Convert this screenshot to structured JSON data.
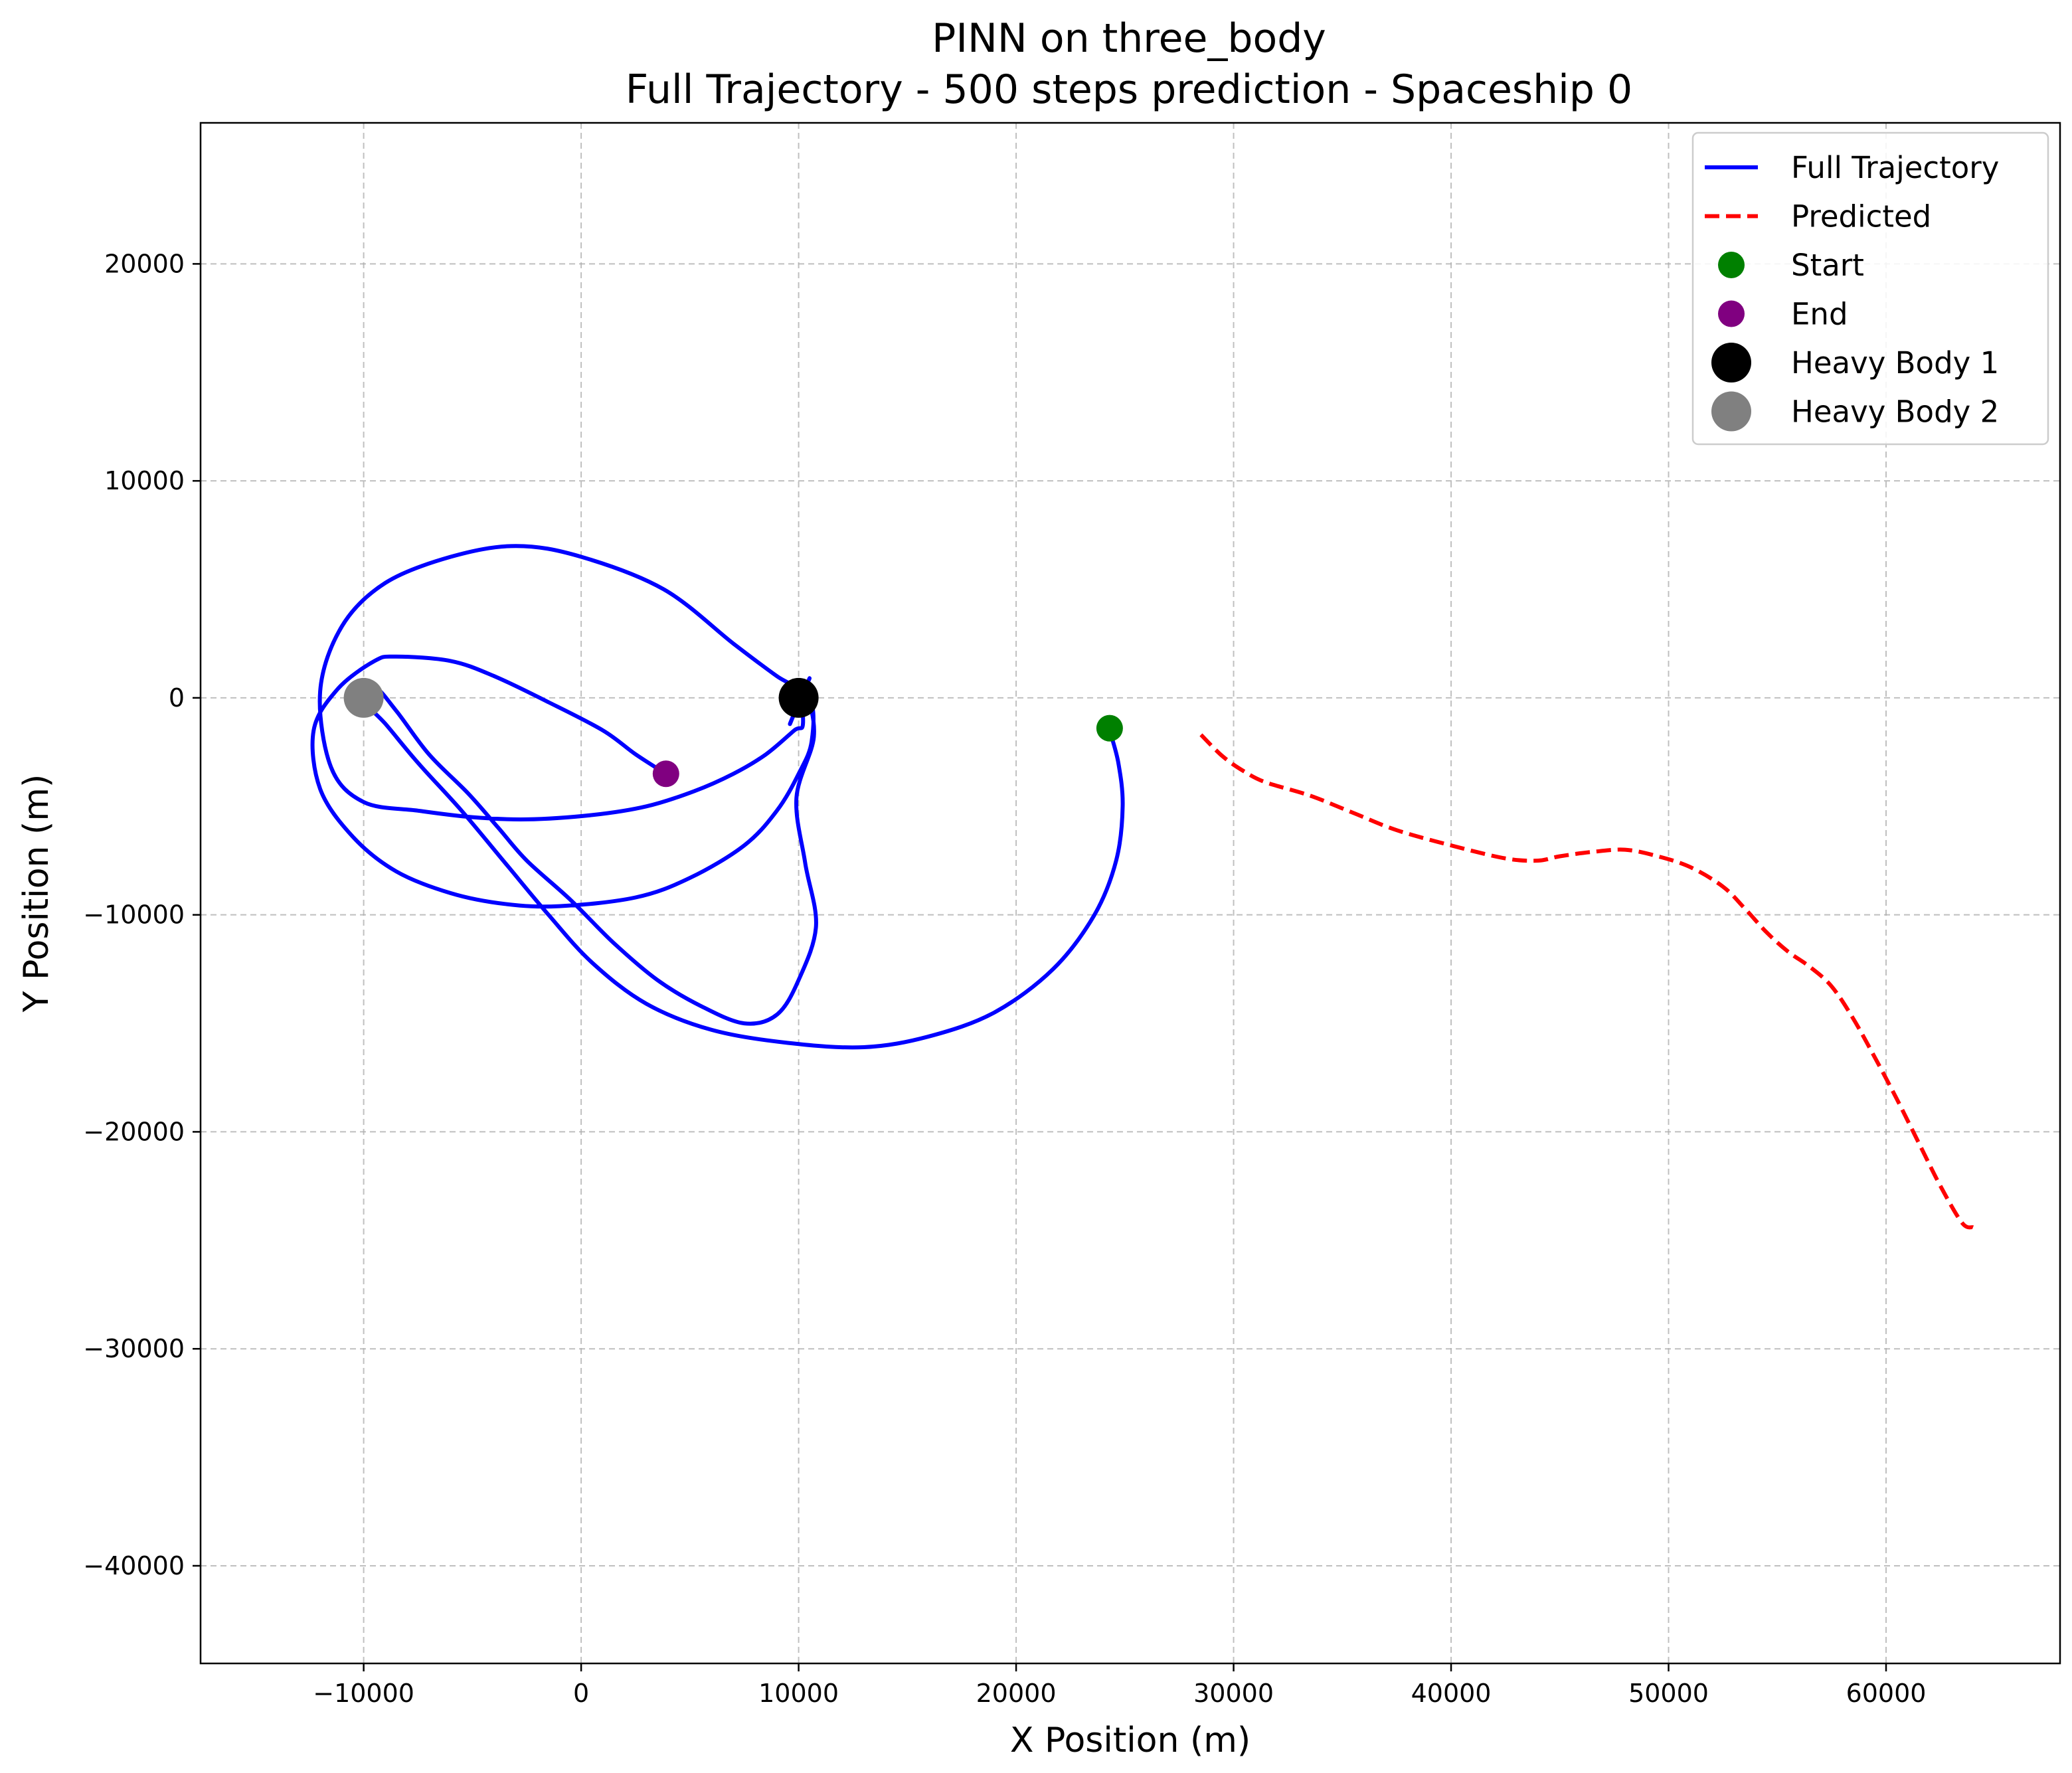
{
  "chart_data": {
    "type": "line",
    "title": "PINN on three_body",
    "subtitle": "Full Trajectory - 500 steps prediction - Spaceship 0",
    "xlabel": "X Position (m)",
    "ylabel": "Y Position (m)",
    "xlim": [
      -17500,
      68000
    ],
    "ylim": [
      -44500,
      26500
    ],
    "xticks": [
      -10000,
      0,
      10000,
      20000,
      30000,
      40000,
      50000,
      60000
    ],
    "xtick_labels": [
      "−10000",
      "0",
      "10000",
      "20000",
      "30000",
      "40000",
      "50000",
      "60000"
    ],
    "yticks": [
      20000,
      10000,
      0,
      -10000,
      -20000,
      -30000,
      -40000
    ],
    "ytick_labels": [
      "20000",
      "10000",
      "0",
      "−10000",
      "−20000",
      "−30000",
      "−40000"
    ],
    "grid": true,
    "legend_position": "top-right",
    "series": [
      {
        "name": "Full Trajectory",
        "kind": "line",
        "color": "#0000ff",
        "style": "solid",
        "x": [
          24300,
          24700,
          24900,
          24600,
          23600,
          21700,
          19000,
          16000,
          13000,
          9500,
          6000,
          3000,
          500,
          -1500,
          -3500,
          -5500,
          -7500,
          -9000,
          -10000,
          -9500,
          -8500,
          -7000,
          -5200,
          -3800,
          -2500,
          -500,
          1500,
          3500,
          5500,
          7500,
          9000,
          10000,
          10800,
          10300,
          9900,
          10700,
          10300,
          9600,
          10500,
          9800,
          10000,
          10200,
          9800,
          8500,
          7000,
          5200,
          3000,
          500,
          -2500,
          -5000,
          -7500,
          -10000,
          -11500,
          -12000,
          -11000,
          -9000,
          -6000,
          -3000,
          0,
          3800,
          7000,
          9000,
          10500,
          10600,
          10000,
          9000,
          7500,
          5000,
          2500,
          -1000,
          -3500,
          -6000,
          -8500,
          -10500,
          -12000,
          -12300,
          -11200,
          -9500,
          -8500,
          -6000,
          -4000,
          -1500,
          1000,
          2500,
          3900
        ],
        "y": [
          -1500,
          -3000,
          -5000,
          -7500,
          -10000,
          -12500,
          -14500,
          -15600,
          -16100,
          -15900,
          -15300,
          -14100,
          -12200,
          -10000,
          -7600,
          -5200,
          -3000,
          -1200,
          -100,
          500,
          -600,
          -2600,
          -4400,
          -6000,
          -7500,
          -9300,
          -11300,
          -13000,
          -14200,
          -15000,
          -14600,
          -13000,
          -10500,
          -7600,
          -4600,
          -1800,
          100,
          -1200,
          900,
          -600,
          700,
          -1200,
          -1500,
          -2600,
          -3500,
          -4300,
          -5000,
          -5400,
          -5600,
          -5500,
          -5200,
          -4800,
          -3200,
          300,
          3300,
          5300,
          6500,
          7000,
          6500,
          5000,
          2500,
          1000,
          0,
          -2000,
          -3500,
          -5200,
          -6800,
          -8300,
          -9200,
          -9600,
          -9500,
          -9000,
          -8000,
          -6400,
          -4200,
          -1500,
          400,
          1700,
          1900,
          1700,
          1000,
          -200,
          -1500,
          -2600,
          -3500
        ]
      },
      {
        "name": "Predicted",
        "kind": "line",
        "color": "#ff0000",
        "style": "dashed",
        "x": [
          28500,
          29500,
          30500,
          31500,
          33500,
          35500,
          37500,
          40000,
          42500,
          44000,
          45000,
          46500,
          48000,
          49500,
          51000,
          52500,
          53500,
          54500,
          55500,
          56500,
          57500,
          58500,
          59500,
          60500,
          61500,
          62500,
          63500,
          64000
        ],
        "y": [
          -1700,
          -2700,
          -3400,
          -3900,
          -4500,
          -5300,
          -6100,
          -6800,
          -7400,
          -7500,
          -7300,
          -7100,
          -7000,
          -7300,
          -7800,
          -8700,
          -9700,
          -10800,
          -11700,
          -12400,
          -13300,
          -14800,
          -16600,
          -18500,
          -20500,
          -22500,
          -24200,
          -24400
        ]
      }
    ],
    "markers": [
      {
        "name": "Start",
        "x": 24300,
        "y": -1400,
        "color": "#008000",
        "size": "medium"
      },
      {
        "name": "End",
        "x": 3900,
        "y": -3500,
        "color": "#800080",
        "size": "medium"
      },
      {
        "name": "Heavy Body 1",
        "x": 10000,
        "y": 0,
        "color": "#000000",
        "size": "large"
      },
      {
        "name": "Heavy Body 2",
        "x": -10000,
        "y": 0,
        "color": "#808080",
        "size": "large"
      }
    ],
    "legend": [
      {
        "label": "Full Trajectory",
        "symbol": "line",
        "color": "#0000ff",
        "style": "solid"
      },
      {
        "label": "Predicted",
        "symbol": "line",
        "color": "#ff0000",
        "style": "dashed"
      },
      {
        "label": "Start",
        "symbol": "dot",
        "color": "#008000",
        "size": "medium"
      },
      {
        "label": "End",
        "symbol": "dot",
        "color": "#800080",
        "size": "medium"
      },
      {
        "label": "Heavy Body 1",
        "symbol": "dot",
        "color": "#000000",
        "size": "large"
      },
      {
        "label": "Heavy Body 2",
        "symbol": "dot",
        "color": "#808080",
        "size": "large"
      }
    ]
  }
}
